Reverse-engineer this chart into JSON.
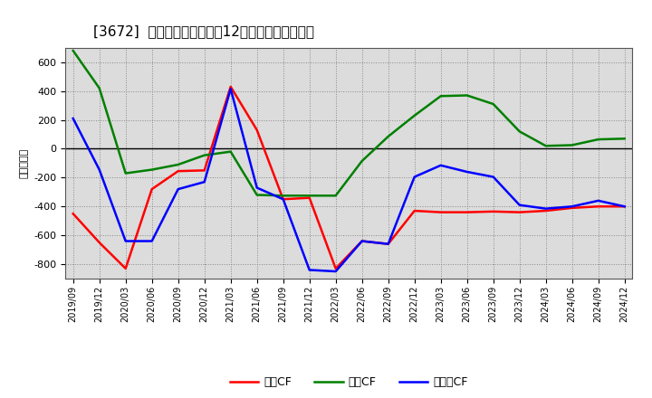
{
  "title": "[3672]  キャッシュフローの12か月移動合計の推移",
  "ylabel": "（百万円）",
  "background_color": "#ffffff",
  "plot_bg_color": "#dcdcdc",
  "x_labels": [
    "2019/09",
    "2019/12",
    "2020/03",
    "2020/06",
    "2020/09",
    "2020/12",
    "2021/03",
    "2021/06",
    "2021/09",
    "2021/12",
    "2022/03",
    "2022/06",
    "2022/09",
    "2022/12",
    "2023/03",
    "2023/06",
    "2023/09",
    "2023/12",
    "2024/03",
    "2024/06",
    "2024/09",
    "2024/12"
  ],
  "eigyo_cf": [
    -450,
    -650,
    -830,
    -280,
    -155,
    -150,
    430,
    130,
    -350,
    -340,
    -830,
    -640,
    -660,
    -430,
    -440,
    -440,
    -435,
    -440,
    -430,
    -410,
    -400,
    -400
  ],
  "toshi_cf": [
    680,
    420,
    -170,
    -145,
    -110,
    -45,
    -20,
    -320,
    -325,
    -325,
    -325,
    -85,
    85,
    230,
    365,
    370,
    310,
    120,
    20,
    25,
    65,
    70
  ],
  "free_cf": [
    210,
    -145,
    -640,
    -640,
    -280,
    -230,
    415,
    -270,
    -350,
    -840,
    -850,
    -640,
    -660,
    -195,
    -115,
    -160,
    -195,
    -390,
    -415,
    -400,
    -360,
    -400
  ],
  "ylim": [
    -900,
    700
  ],
  "yticks": [
    -800,
    -600,
    -400,
    -200,
    0,
    200,
    400,
    600
  ],
  "line_colors": {
    "eigyo": "#ff0000",
    "toshi": "#008000",
    "free": "#0000ff"
  },
  "line_width": 1.8,
  "legend_labels": [
    "営業CF",
    "投資CF",
    "フリーCF"
  ]
}
